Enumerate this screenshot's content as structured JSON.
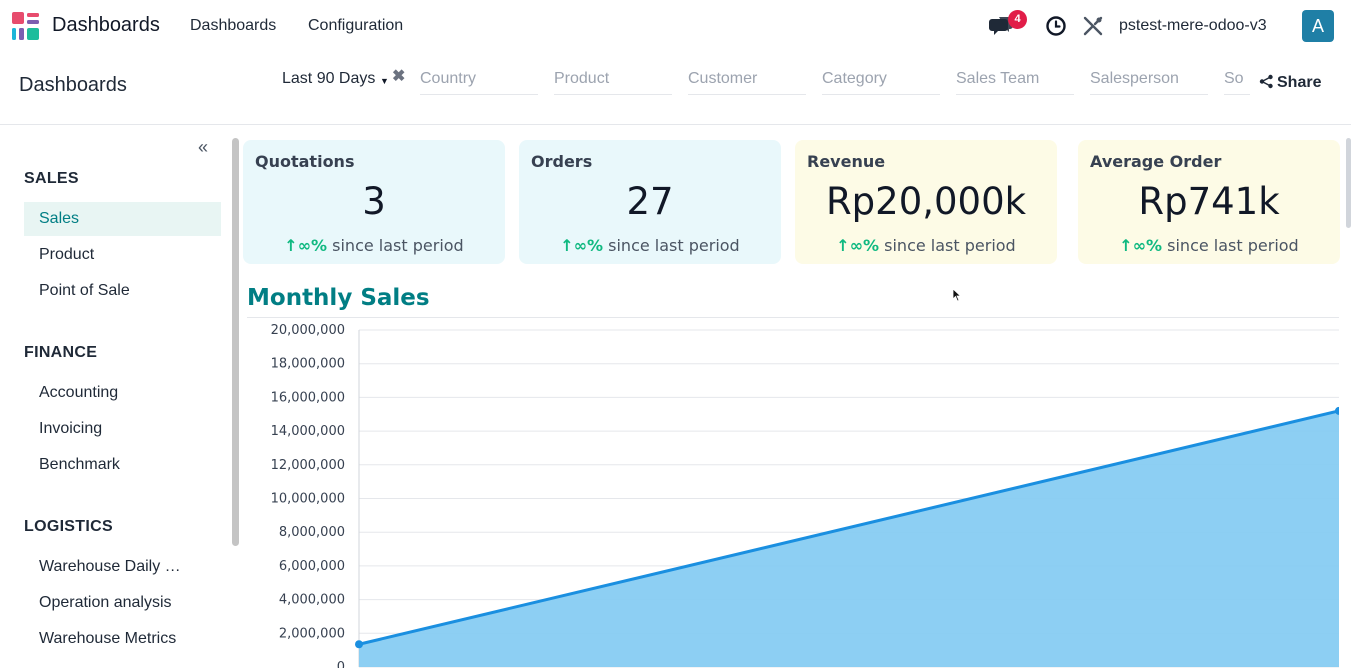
{
  "navbar": {
    "app_name": "Dashboards",
    "menu": [
      "Dashboards",
      "Configuration"
    ],
    "messages_count": "4",
    "database": "pstest-mere-odoo-v3",
    "avatar_letter": "A"
  },
  "control_panel": {
    "title": "Dashboards",
    "period": "Last 90 Days",
    "filters": [
      "Country",
      "Product",
      "Customer",
      "Category",
      "Sales Team",
      "Salesperson",
      "So"
    ],
    "share_label": "Share"
  },
  "sidebar": {
    "sections": [
      {
        "title": "SALES",
        "items": [
          "Sales",
          "Product",
          "Point of Sale"
        ]
      },
      {
        "title": "FINANCE",
        "items": [
          "Accounting",
          "Invoicing",
          "Benchmark"
        ]
      },
      {
        "title": "LOGISTICS",
        "items": [
          "Warehouse Daily …",
          "Operation analysis",
          "Warehouse Metrics"
        ]
      }
    ],
    "active_item": "Sales"
  },
  "kpis": [
    {
      "label": "Quotations",
      "value": "3",
      "change": "↑∞%",
      "suffix": "since last period"
    },
    {
      "label": "Orders",
      "value": "27",
      "change": "↑∞%",
      "suffix": "since last period"
    },
    {
      "label": "Revenue",
      "value": "Rp20,000k",
      "change": "↑∞%",
      "suffix": "since last period"
    },
    {
      "label": "Average Order",
      "value": "Rp741k",
      "change": "↑∞%",
      "suffix": "since last period"
    }
  ],
  "colors": {
    "accent": "#017e84",
    "positive": "#10b981",
    "area_fill": "#87ccf2",
    "line": "#1a8fe0"
  },
  "chart_data": {
    "type": "area",
    "title": "Monthly Sales",
    "x": [
      0,
      1
    ],
    "series": [
      {
        "values": [
          1350000,
          15200000
        ]
      }
    ],
    "yticks": [
      "20,000,000",
      "18,000,000",
      "16,000,000",
      "14,000,000",
      "12,000,000",
      "10,000,000",
      "8,000,000",
      "6,000,000",
      "4,000,000",
      "2,000,000",
      "0"
    ],
    "ylim": [
      0,
      20000000
    ],
    "grid": true
  }
}
